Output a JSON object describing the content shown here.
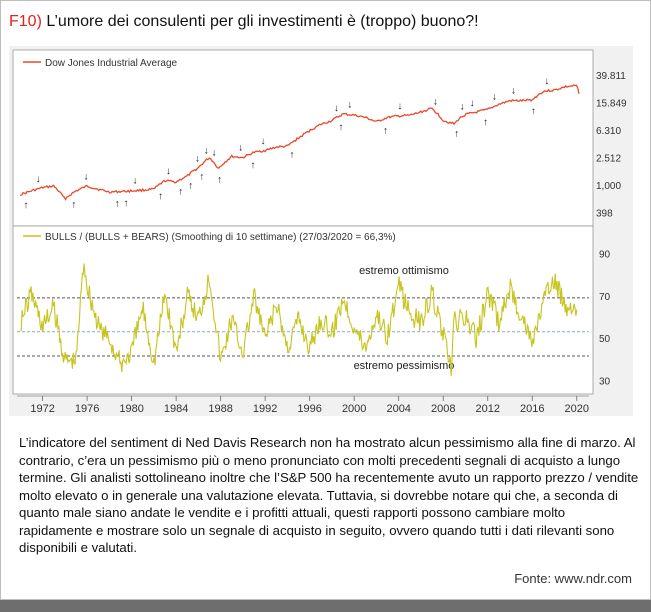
{
  "title": {
    "fig_label": "F10)",
    "text": "L’umore dei consulenti per gli investimenti è (troppo) buono?!"
  },
  "chart_data": [
    {
      "type": "line",
      "legend": "Dow Jones Industrial Average",
      "scale": "log",
      "y_ticks": [
        "39.811",
        "15.849",
        "6.310",
        "2.512",
        "1,000",
        "398"
      ],
      "y_tick_values": [
        39811,
        15849,
        6310,
        2512,
        1000,
        398
      ],
      "ylim": [
        300,
        60000
      ],
      "color": "#e8492b",
      "x": [
        1970,
        1972,
        1973,
        1974,
        1975,
        1976,
        1977,
        1978,
        1980,
        1982,
        1983,
        1984,
        1985,
        1986,
        1987,
        1987.8,
        1989,
        1990,
        1991,
        1992,
        1993,
        1994,
        1995,
        1996,
        1997,
        1998,
        1999,
        2000,
        2001,
        2002,
        2003,
        2004,
        2005,
        2006,
        2007,
        2008,
        2009,
        2009.5,
        2010,
        2011,
        2012,
        2013,
        2014,
        2015,
        2016,
        2017,
        2018,
        2019,
        2020,
        2020.2
      ],
      "values": [
        750,
        950,
        1000,
        650,
        850,
        1000,
        900,
        820,
        850,
        900,
        1200,
        1150,
        1400,
        1850,
        2600,
        1800,
        2700,
        2600,
        3100,
        3300,
        3700,
        3800,
        5000,
        6400,
        7900,
        9000,
        11200,
        10800,
        10000,
        8600,
        10000,
        10500,
        10700,
        12000,
        13500,
        9000,
        8000,
        9800,
        11000,
        12000,
        13000,
        15500,
        17500,
        17500,
        18000,
        24000,
        25000,
        28000,
        29000,
        22000
      ],
      "buy_signal_years": [
        1970.5,
        1974.8,
        1978.7,
        1979.5,
        1982.6,
        1984.4,
        1985.3,
        1986.3,
        1987.9,
        1990.9,
        1994.4,
        1998.8,
        2002.8,
        2009.2,
        2011.8,
        2016.1
      ],
      "sell_signal_years": [
        1971.6,
        1975.9,
        1980.3,
        1983.3,
        1985.9,
        1986.7,
        1987.4,
        1989.8,
        1991.8,
        1998.4,
        1999.6,
        2004.1,
        2007.3,
        2009.7,
        2010.6,
        2012.6,
        2014.3,
        2017.3
      ]
    },
    {
      "type": "line",
      "legend": "BULLS / (BULLS + BEARS) (Smoothing di 10 settimane) (27/03/2020 = 66,3%)",
      "y_ticks": [
        "90",
        "70",
        "50",
        "30"
      ],
      "y_tick_values": [
        90,
        70,
        50,
        30
      ],
      "ylim": [
        25,
        95
      ],
      "color": "#c6c41d",
      "x": [
        1970,
        1971,
        1972,
        1973,
        1974,
        1975,
        1975.7,
        1976,
        1977,
        1978,
        1979,
        1980,
        1981,
        1982,
        1983,
        1984,
        1985,
        1986,
        1987,
        1988,
        1989,
        1990,
        1991,
        1992,
        1993,
        1994,
        1995,
        1996,
        1997,
        1998,
        1999,
        2000,
        2001,
        2002,
        2003,
        2004,
        2005,
        2006,
        2007,
        2008,
        2008.7,
        2009,
        2010,
        2011,
        2012,
        2013,
        2014,
        2015,
        2016,
        2017,
        2018,
        2019,
        2020
      ],
      "values": [
        58,
        72,
        56,
        65,
        40,
        40,
        88,
        76,
        56,
        50,
        38,
        44,
        65,
        39,
        72,
        44,
        70,
        60,
        80,
        40,
        60,
        44,
        70,
        50,
        66,
        46,
        60,
        46,
        60,
        52,
        70,
        56,
        46,
        62,
        52,
        75,
        62,
        58,
        72,
        52,
        35,
        58,
        60,
        50,
        72,
        58,
        74,
        62,
        48,
        68,
        78,
        66,
        66
      ],
      "reference_lines": [
        {
          "value": 69.5,
          "label": "estremo ottimismo"
        },
        {
          "value": 53.5,
          "label": ""
        },
        {
          "value": 42,
          "label": "estremo pessimismo"
        }
      ]
    }
  ],
  "x_axis": {
    "tick_labels": [
      "1972",
      "1976",
      "1980",
      "1984",
      "1988",
      "1992",
      "1996",
      "2000",
      "2004",
      "2008",
      "2012",
      "2016",
      "2020"
    ],
    "tick_years": [
      1972,
      1976,
      1980,
      1984,
      1988,
      1992,
      1996,
      2000,
      2004,
      2008,
      2012,
      2016,
      2020
    ],
    "xlim": [
      1969.7,
      2021.1
    ]
  },
  "caption": "L’indicatore del sentiment di Ned Davis Research non ha mostrato alcun pessimismo alla fine di marzo. Al contrario, c’era un pessimismo più o meno pronunciato con molti precedenti segnali di acquisto a lungo termine. Gli analisti sottolineano inoltre che l’S&P 500 ha recentemente avuto un rapporto prezzo / vendite molto elevato o in generale una valutazione elevata. Tuttavia, si dovrebbe notare qui che, a seconda di quanto male siano andate le vendite e i profitti attuali, questi rapporti possono cambiare molto rapidamente e mostrare solo un segnale di acquisto in seguito, ovvero quando tutti i dati rilevanti sono disponibili e valutati.",
  "source": "Fonte: www.ndr.com",
  "colors": {
    "fig_label": "#e2231a",
    "dow_line": "#e8492b",
    "sentiment_line": "#c6c41d",
    "extreme_line": "#555555",
    "mid_line": "#8aa9c9",
    "panel_bg": "#f1f1f1"
  }
}
